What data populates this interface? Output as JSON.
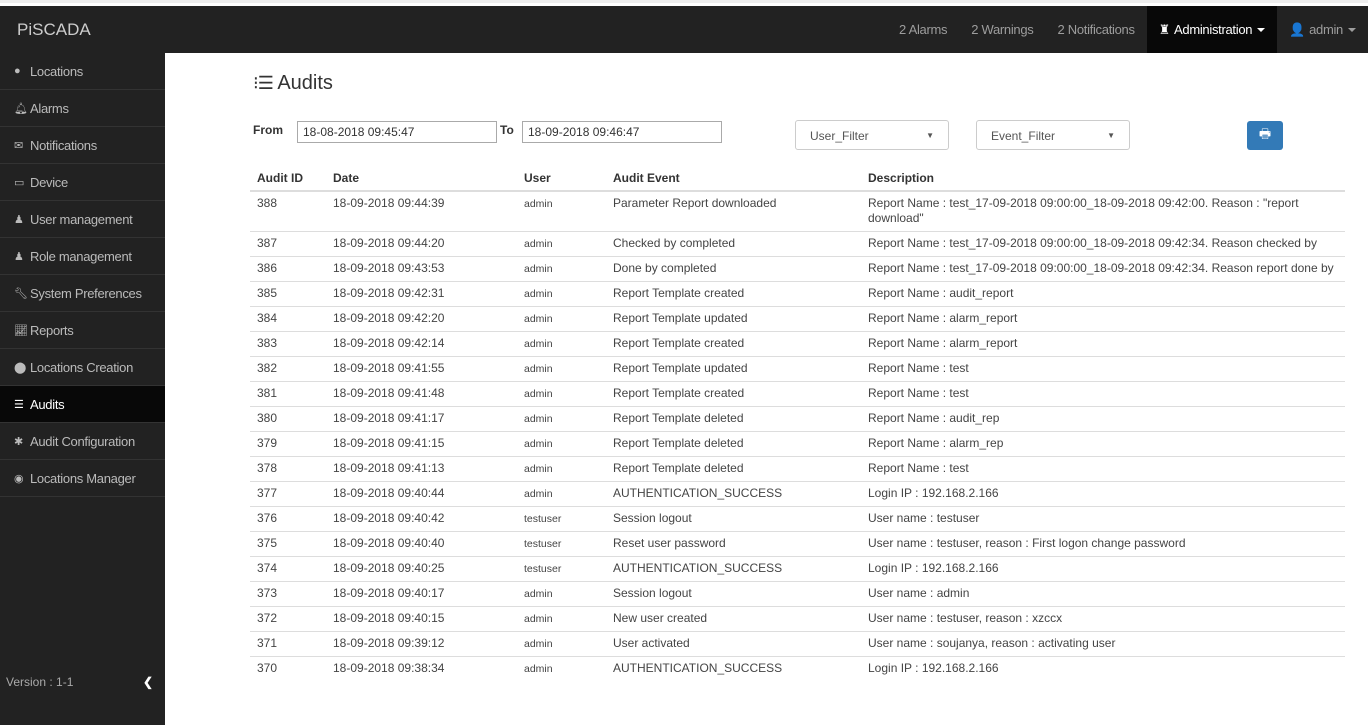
{
  "brand": "PiSCADA",
  "topnav": {
    "alarms": "2 Alarms",
    "warnings": "2 Warnings",
    "notifications": "2 Notifications",
    "administration": "Administration",
    "user": "admin"
  },
  "sidebar": {
    "items": [
      {
        "label": "Locations",
        "icon": "globe-icon"
      },
      {
        "label": "Alarms",
        "icon": "bell-icon"
      },
      {
        "label": "Notifications",
        "icon": "envelope-icon"
      },
      {
        "label": "Device",
        "icon": "hdd-icon"
      },
      {
        "label": "User management",
        "icon": "user-icon"
      },
      {
        "label": "Role management",
        "icon": "users-icon"
      },
      {
        "label": "System Preferences",
        "icon": "wrench-icon"
      },
      {
        "label": "Reports",
        "icon": "chart-icon"
      },
      {
        "label": "Locations Creation",
        "icon": "map-marker-icon"
      },
      {
        "label": "Audits",
        "icon": "list-ol-icon",
        "active": true
      },
      {
        "label": "Audit Configuration",
        "icon": "cog-icon"
      },
      {
        "label": "Locations Manager",
        "icon": "compass-icon"
      }
    ],
    "version": "Version : 1-1"
  },
  "page": {
    "title": "Audits"
  },
  "filters": {
    "from_label": "From",
    "from_value": "18-08-2018 09:45:47",
    "to_label": "To",
    "to_value": "18-09-2018 09:46:47",
    "user_filter": "User_Filter",
    "event_filter": "Event_Filter"
  },
  "table": {
    "headers": [
      "Audit ID",
      "Date",
      "User",
      "Audit Event",
      "Description"
    ],
    "rows": [
      [
        "388",
        "18-09-2018 09:44:39",
        "admin",
        "Parameter Report downloaded",
        "Report Name : test_17-09-2018 09:00:00_18-09-2018 09:42:00. Reason : \"report download\""
      ],
      [
        "387",
        "18-09-2018 09:44:20",
        "admin",
        "Checked by completed",
        "Report Name : test_17-09-2018 09:00:00_18-09-2018 09:42:34. Reason checked by"
      ],
      [
        "386",
        "18-09-2018 09:43:53",
        "admin",
        "Done by completed",
        "Report Name : test_17-09-2018 09:00:00_18-09-2018 09:42:34. Reason report done by"
      ],
      [
        "385",
        "18-09-2018 09:42:31",
        "admin",
        "Report Template created",
        "Report Name : audit_report"
      ],
      [
        "384",
        "18-09-2018 09:42:20",
        "admin",
        "Report Template updated",
        "Report Name : alarm_report"
      ],
      [
        "383",
        "18-09-2018 09:42:14",
        "admin",
        "Report Template created",
        "Report Name : alarm_report"
      ],
      [
        "382",
        "18-09-2018 09:41:55",
        "admin",
        "Report Template updated",
        "Report Name : test"
      ],
      [
        "381",
        "18-09-2018 09:41:48",
        "admin",
        "Report Template created",
        "Report Name : test"
      ],
      [
        "380",
        "18-09-2018 09:41:17",
        "admin",
        "Report Template deleted",
        "Report Name : audit_rep"
      ],
      [
        "379",
        "18-09-2018 09:41:15",
        "admin",
        "Report Template deleted",
        "Report Name : alarm_rep"
      ],
      [
        "378",
        "18-09-2018 09:41:13",
        "admin",
        "Report Template deleted",
        "Report Name : test"
      ],
      [
        "377",
        "18-09-2018 09:40:44",
        "admin",
        "AUTHENTICATION_SUCCESS",
        "Login IP : 192.168.2.166"
      ],
      [
        "376",
        "18-09-2018 09:40:42",
        "testuser",
        "Session logout",
        "User name : testuser"
      ],
      [
        "375",
        "18-09-2018 09:40:40",
        "testuser",
        "Reset user password",
        "User name : testuser, reason : First logon change password"
      ],
      [
        "374",
        "18-09-2018 09:40:25",
        "testuser",
        "AUTHENTICATION_SUCCESS",
        "Login IP : 192.168.2.166"
      ],
      [
        "373",
        "18-09-2018 09:40:17",
        "admin",
        "Session logout",
        "User name : admin"
      ],
      [
        "372",
        "18-09-2018 09:40:15",
        "admin",
        "New user created",
        "User name : testuser, reason : xzccx"
      ],
      [
        "371",
        "18-09-2018 09:39:12",
        "admin",
        "User activated",
        "User name : soujanya, reason : activating user"
      ],
      [
        "370",
        "18-09-2018 09:38:34",
        "admin",
        "AUTHENTICATION_SUCCESS",
        "Login IP : 192.168.2.166"
      ]
    ]
  }
}
